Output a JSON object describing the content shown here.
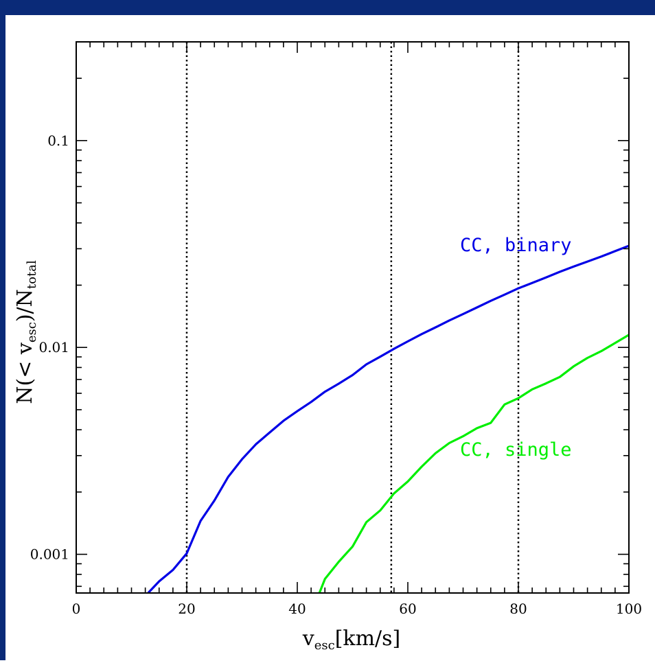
{
  "colors": {
    "border": "#0a2a78",
    "binary": "#0000e6",
    "single": "#00ee00",
    "axis": "#000000"
  },
  "chart_data": {
    "type": "line",
    "xlabel": {
      "main": "v",
      "sub": "esc",
      "unit": "[km/s]"
    },
    "ylabel": {
      "a": "N(< v",
      "a_sub": "esc",
      "b": ")/N",
      "b_sub": "total"
    },
    "xlim": [
      0,
      100
    ],
    "ylim": [
      0.00065,
      0.3
    ],
    "yscale": "log",
    "x_ticks": [
      "0",
      "20",
      "40",
      "60",
      "80",
      "100"
    ],
    "y_ticks": [
      "0.1",
      "0.01",
      "0.001"
    ],
    "vlines": [
      20,
      57,
      80
    ],
    "grid": false,
    "series": [
      {
        "name": "CC, binary",
        "color": "#0000e6",
        "x": [
          13,
          15,
          17.5,
          20,
          22.5,
          25,
          27.5,
          30,
          32.5,
          35,
          37.5,
          40,
          42.5,
          45,
          47.5,
          50,
          52.5,
          55,
          57.5,
          60,
          62.5,
          65,
          67.5,
          70,
          72.5,
          75,
          77.5,
          80,
          82.5,
          85,
          87.5,
          90,
          92.5,
          95,
          97.5,
          100
        ],
        "y": [
          0.00065,
          0.00074,
          0.00084,
          0.00101,
          0.00145,
          0.00182,
          0.00237,
          0.00288,
          0.0034,
          0.00388,
          0.00442,
          0.00492,
          0.00545,
          0.00611,
          0.00668,
          0.00735,
          0.00828,
          0.00902,
          0.00985,
          0.0107,
          0.0116,
          0.0125,
          0.0135,
          0.0145,
          0.0156,
          0.0168,
          0.018,
          0.0193,
          0.0205,
          0.0218,
          0.0232,
          0.0246,
          0.026,
          0.0275,
          0.0292,
          0.031
        ]
      },
      {
        "name": "CC, single",
        "color": "#00ee00",
        "x": [
          44,
          45,
          47.5,
          50,
          52.5,
          55,
          57.5,
          60,
          62.5,
          65,
          67.5,
          70,
          72.5,
          75,
          77.5,
          80,
          82.5,
          85,
          87.5,
          90,
          92.5,
          95,
          97.5,
          100
        ],
        "y": [
          0.00065,
          0.00076,
          0.00092,
          0.00109,
          0.00143,
          0.00163,
          0.00197,
          0.00225,
          0.00265,
          0.00308,
          0.00345,
          0.00372,
          0.00407,
          0.00432,
          0.0053,
          0.00568,
          0.00627,
          0.0067,
          0.0072,
          0.0081,
          0.0089,
          0.0096,
          0.0105,
          0.0115
        ]
      }
    ]
  }
}
